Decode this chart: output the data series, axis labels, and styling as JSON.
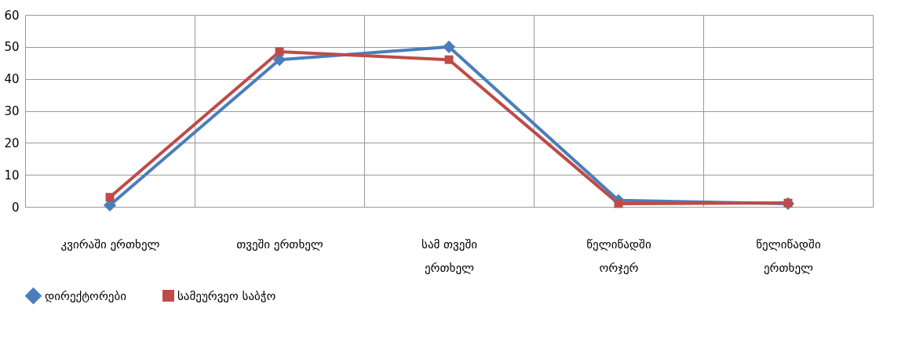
{
  "chart_data": {
    "type": "line",
    "categories": [
      "კვირაში ერთხელ",
      "თვეში ერთხელ",
      "სამ თვეში ერთხელ",
      "წელიწადში ორჯერ",
      "წელიწადში ერთხელ"
    ],
    "series": [
      {
        "name": "დირექტორები",
        "color": "#4a7ebb",
        "marker": "diamond",
        "values": [
          0.5,
          46,
          50,
          2,
          1
        ]
      },
      {
        "name": "სამეურვეო საბჭო",
        "color": "#be4b48",
        "marker": "square",
        "values": [
          3,
          48.5,
          46,
          1,
          1.2
        ]
      }
    ],
    "ylim": [
      0,
      60
    ],
    "yticks": [
      0,
      10,
      20,
      30,
      40,
      50,
      60
    ],
    "grid": true,
    "legend": "bottom",
    "line_style": "solid"
  }
}
